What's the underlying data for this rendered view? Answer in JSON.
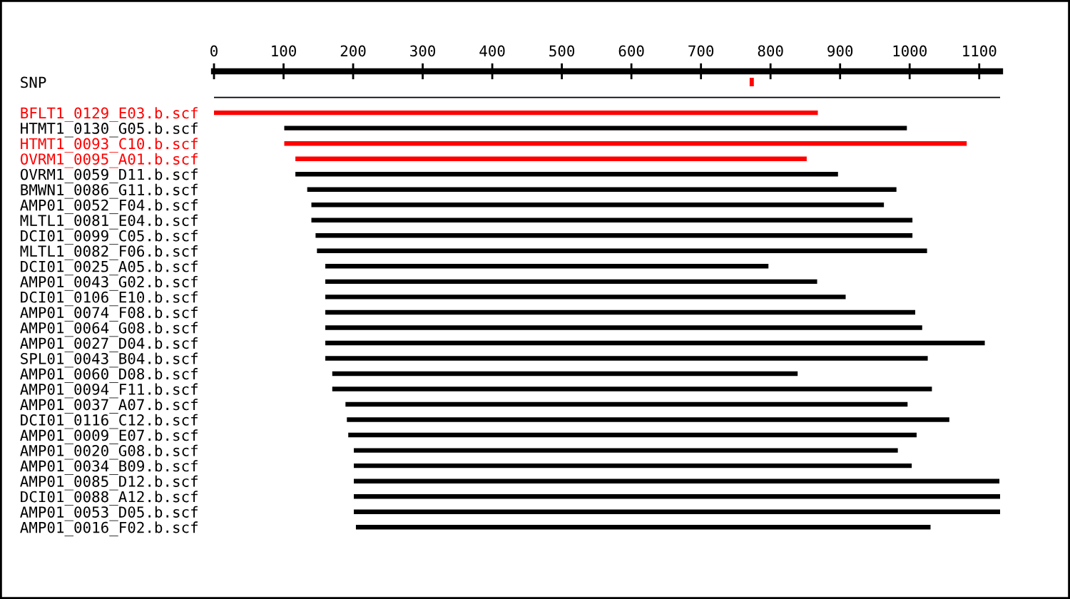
{
  "chart_data": {
    "type": "bar",
    "orientation": "horizontal",
    "categories": [
      "SNP",
      null,
      "BFLT1_0129_E03.b.scf",
      "HTMT1_0130_G05.b.scf",
      "HTMT1_0093_C10.b.scf",
      "OVRM1_0095_A01.b.scf",
      "OVRM1_0059_D11.b.scf",
      "BMWN1_0086_G11.b.scf",
      "AMP01_0052_F04.b.scf",
      "MLTL1_0081_E04.b.scf",
      "DCI01_0099_C05.b.scf",
      "MLTL1_0082_F06.b.scf",
      "DCI01_0025_A05.b.scf",
      "AMP01_0043_G02.b.scf",
      "DCI01_0106_E10.b.scf",
      "AMP01_0074_F08.b.scf",
      "AMP01_0064_G08.b.scf",
      "AMP01_0027_D04.b.scf",
      "SPL01_0043_B04.b.scf",
      "AMP01_0060_D08.b.scf",
      "AMP01_0094_F11.b.scf",
      "AMP01_0037_A07.b.scf",
      "DCI01_0116_C12.b.scf",
      "AMP01_0009_E07.b.scf",
      "AMP01_0020_G08.b.scf",
      "AMP01_0034_B09.b.scf",
      "AMP01_0085_D12.b.scf",
      "DCI01_0088_A12.b.scf",
      "AMP01_0053_D05.b.scf",
      "AMP01_0016_F02.b.scf"
    ],
    "base": [
      770,
      0,
      0,
      101,
      101,
      117,
      117,
      134,
      140,
      140,
      146,
      148,
      160,
      160,
      160,
      160,
      160,
      160,
      160,
      170,
      170,
      189,
      191,
      193,
      201,
      201,
      201,
      201,
      201,
      204
    ],
    "values": [
      6,
      1130,
      868,
      895,
      981,
      735,
      780,
      847,
      823,
      864,
      858,
      877,
      637,
      707,
      748,
      848,
      858,
      948,
      866,
      669,
      862,
      808,
      866,
      817,
      782,
      802,
      928,
      929,
      929,
      826
    ],
    "colors": [
      "#ff0000",
      "#000000",
      "#ff0000",
      "#000000",
      "#ff0000",
      "#ff0000",
      "#000000",
      "#000000",
      "#000000",
      "#000000",
      "#000000",
      "#000000",
      "#000000",
      "#000000",
      "#000000",
      "#000000",
      "#000000",
      "#000000",
      "#000000",
      "#000000",
      "#000000",
      "#000000",
      "#000000",
      "#000000",
      "#000000",
      "#000000",
      "#000000",
      "#000000",
      "#000000",
      "#000000"
    ],
    "xlim": [
      0,
      1130
    ],
    "xticks": [
      0,
      100,
      200,
      300,
      400,
      500,
      600,
      700,
      800,
      900,
      1000,
      1100
    ],
    "grid": false,
    "legend": false
  }
}
